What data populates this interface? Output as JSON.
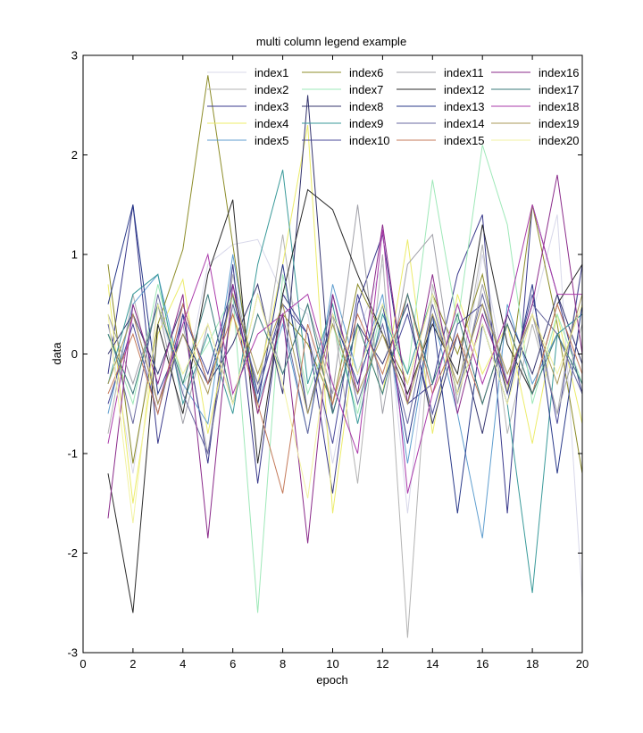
{
  "chart_data": {
    "type": "line",
    "title": "multi column legend example",
    "xlabel": "epoch",
    "ylabel": "data",
    "xlim": [
      0,
      20
    ],
    "ylim": [
      -3,
      3
    ],
    "xticks": [
      "0",
      "2",
      "4",
      "6",
      "8",
      "10",
      "12",
      "14",
      "16",
      "18",
      "20"
    ],
    "yticks": [
      "-3",
      "-2",
      "-1",
      "0",
      "1",
      "2",
      "3"
    ],
    "grid": false,
    "legend_position": "top-right",
    "legend_columns": 4,
    "x": [
      1,
      2,
      3,
      4,
      5,
      6,
      7,
      8,
      9,
      10,
      11,
      12,
      13,
      14,
      15,
      16,
      17,
      18,
      19,
      20
    ],
    "series": [
      {
        "name": "index1",
        "color": "#d8d8ea",
        "values": [
          0.3,
          -1.2,
          0.5,
          -0.4,
          0.9,
          1.1,
          1.15,
          0.6,
          0.4,
          -1.1,
          0.2,
          0.9,
          -1.6,
          0.6,
          -0.5,
          1.0,
          -0.3,
          0.4,
          1.4,
          -2.45
        ]
      },
      {
        "name": "index2",
        "color": "#b3b3b3",
        "values": [
          -0.8,
          0.6,
          -0.5,
          0.3,
          -1.0,
          0.8,
          -0.4,
          1.2,
          -0.6,
          0.4,
          -1.3,
          1.0,
          -2.85,
          0.7,
          -0.4,
          1.1,
          -0.8,
          0.3,
          -0.6,
          0.9
        ]
      },
      {
        "name": "index3",
        "color": "#3a3a8c",
        "values": [
          -0.2,
          1.5,
          -0.9,
          0.4,
          -1.1,
          0.9,
          -1.3,
          0.6,
          0.2,
          -1.4,
          0.5,
          1.2,
          -0.5,
          -0.3,
          0.8,
          1.4,
          -1.6,
          1.5,
          0.6,
          -0.4
        ]
      },
      {
        "name": "index4",
        "color": "#ecec6a",
        "values": [
          0.7,
          -1.5,
          0.2,
          0.75,
          -0.8,
          0.4,
          -0.3,
          0.9,
          2.3,
          -1.6,
          0.3,
          -0.4,
          1.15,
          -0.8,
          0.6,
          -0.2,
          0.3,
          -0.9,
          0.4,
          -0.7
        ]
      },
      {
        "name": "index5",
        "color": "#5f9ecf",
        "values": [
          -0.6,
          0.5,
          0.8,
          -0.3,
          -0.7,
          1.0,
          -0.5,
          0.3,
          -0.8,
          0.7,
          -0.2,
          0.6,
          -1.1,
          0.4,
          -0.6,
          -1.85,
          0.5,
          -0.3,
          0.2,
          0.4
        ]
      },
      {
        "name": "index6",
        "color": "#8c8c28",
        "values": [
          0.9,
          -1.1,
          0.3,
          1.05,
          2.8,
          1.1,
          -0.6,
          0.4,
          0.1,
          -0.5,
          0.7,
          0.2,
          -0.3,
          0.6,
          0.0,
          0.8,
          -0.4,
          1.5,
          0.3,
          -1.2
        ]
      },
      {
        "name": "index7",
        "color": "#9ee8b8",
        "values": [
          0.2,
          -0.5,
          0.7,
          -0.3,
          0.1,
          0.6,
          -2.6,
          0.8,
          -0.4,
          0.3,
          -0.6,
          0.5,
          -0.2,
          1.75,
          0.3,
          2.1,
          1.3,
          -0.5,
          0.4,
          -0.3
        ]
      },
      {
        "name": "index8",
        "color": "#34346e",
        "values": [
          0.0,
          0.4,
          -0.2,
          0.5,
          -0.3,
          0.1,
          0.7,
          -0.4,
          2.6,
          -0.6,
          0.3,
          -0.1,
          0.5,
          -0.7,
          0.2,
          -0.8,
          0.4,
          -0.2,
          0.6,
          -0.1
        ]
      },
      {
        "name": "index9",
        "color": "#3a9a9a",
        "values": [
          -0.3,
          0.6,
          0.8,
          -0.5,
          0.2,
          -0.6,
          0.9,
          1.85,
          -0.3,
          0.5,
          -0.7,
          0.4,
          -0.2,
          0.6,
          -0.4,
          0.3,
          -0.5,
          -2.4,
          0.2,
          0.4
        ]
      },
      {
        "name": "index10",
        "color": "#4a4a9a",
        "values": [
          -0.5,
          0.3,
          -0.6,
          0.4,
          -0.2,
          0.7,
          -0.4,
          0.5,
          0.2,
          -0.9,
          0.6,
          -0.3,
          0.4,
          -0.6,
          0.3,
          0.5,
          -0.4,
          0.6,
          -0.7,
          0.9
        ]
      },
      {
        "name": "index11",
        "color": "#a0a0a8",
        "values": [
          0.4,
          -0.3,
          0.5,
          -0.7,
          0.3,
          -0.5,
          0.6,
          -0.2,
          0.5,
          -0.4,
          1.5,
          -0.6,
          0.9,
          1.2,
          -0.5,
          0.7,
          -0.3,
          0.4,
          -0.6,
          0.3
        ]
      },
      {
        "name": "index12",
        "color": "#2a2a2a",
        "values": [
          -1.2,
          -2.6,
          0.3,
          -0.6,
          0.8,
          1.55,
          -1.1,
          0.6,
          1.65,
          1.45,
          0.8,
          0.2,
          -0.4,
          0.3,
          -0.2,
          1.3,
          0.1,
          -0.4,
          0.5,
          0.9
        ]
      },
      {
        "name": "index13",
        "color": "#2a3a8a",
        "values": [
          0.5,
          1.5,
          -0.4,
          0.2,
          -0.3,
          0.6,
          -0.5,
          0.9,
          -0.6,
          0.4,
          -0.3,
          0.5,
          -0.9,
          0.4,
          -1.6,
          0.3,
          -0.5,
          0.7,
          -1.2,
          0.5
        ]
      },
      {
        "name": "index14",
        "color": "#6a6aa0",
        "values": [
          0.3,
          -0.7,
          0.6,
          -0.4,
          -1.0,
          0.5,
          -0.3,
          0.4,
          -0.8,
          0.6,
          -0.5,
          0.3,
          -0.7,
          0.5,
          -0.4,
          0.6,
          -0.3,
          0.5,
          0.2,
          -0.4
        ]
      },
      {
        "name": "index15",
        "color": "#c47a5a",
        "values": [
          -0.4,
          0.2,
          -0.6,
          0.5,
          -0.3,
          0.4,
          -0.5,
          -1.4,
          0.3,
          -0.5,
          0.4,
          -0.2,
          0.6,
          -0.4,
          0.2,
          -0.5,
          0.3,
          -0.4,
          0.5,
          -0.2
        ]
      },
      {
        "name": "index16",
        "color": "#8a2a8a",
        "values": [
          -1.65,
          0.5,
          -0.3,
          0.6,
          -1.85,
          0.7,
          -0.6,
          0.4,
          -1.9,
          0.6,
          -0.4,
          1.3,
          -0.5,
          0.8,
          -0.6,
          0.4,
          -0.3,
          0.5,
          1.8,
          0.0
        ]
      },
      {
        "name": "index17",
        "color": "#3a7a7a",
        "values": [
          0.2,
          -0.4,
          0.5,
          -0.3,
          0.6,
          -0.5,
          0.4,
          -0.2,
          0.5,
          -0.6,
          0.3,
          -0.4,
          0.6,
          -0.3,
          0.4,
          -0.5,
          0.3,
          -0.4,
          0.2,
          -0.3
        ]
      },
      {
        "name": "index18",
        "color": "#aa3aaa",
        "values": [
          -0.9,
          0.4,
          -0.5,
          0.3,
          1.0,
          -0.4,
          0.2,
          0.4,
          0.6,
          -0.3,
          -1.0,
          1.25,
          -1.4,
          -0.4,
          0.5,
          -0.3,
          0.4,
          1.5,
          0.6,
          0.6
        ]
      },
      {
        "name": "index19",
        "color": "#a89a5a",
        "values": [
          -0.3,
          0.4,
          -0.5,
          0.2,
          -0.4,
          0.6,
          -0.2,
          0.5,
          -0.6,
          0.3,
          -0.4,
          0.2,
          -0.5,
          0.4,
          -0.3,
          0.5,
          -0.2,
          0.4,
          -0.3,
          0.6
        ]
      },
      {
        "name": "index20",
        "color": "#f2f2a0",
        "values": [
          0.4,
          -1.7,
          0.5,
          -0.2,
          0.3,
          -0.5,
          0.6,
          -0.3,
          -1.45,
          0.4,
          -0.2,
          0.5,
          -0.3,
          0.6,
          -0.4,
          0.3,
          -0.5,
          0.4,
          -0.2,
          0.5
        ]
      }
    ]
  }
}
